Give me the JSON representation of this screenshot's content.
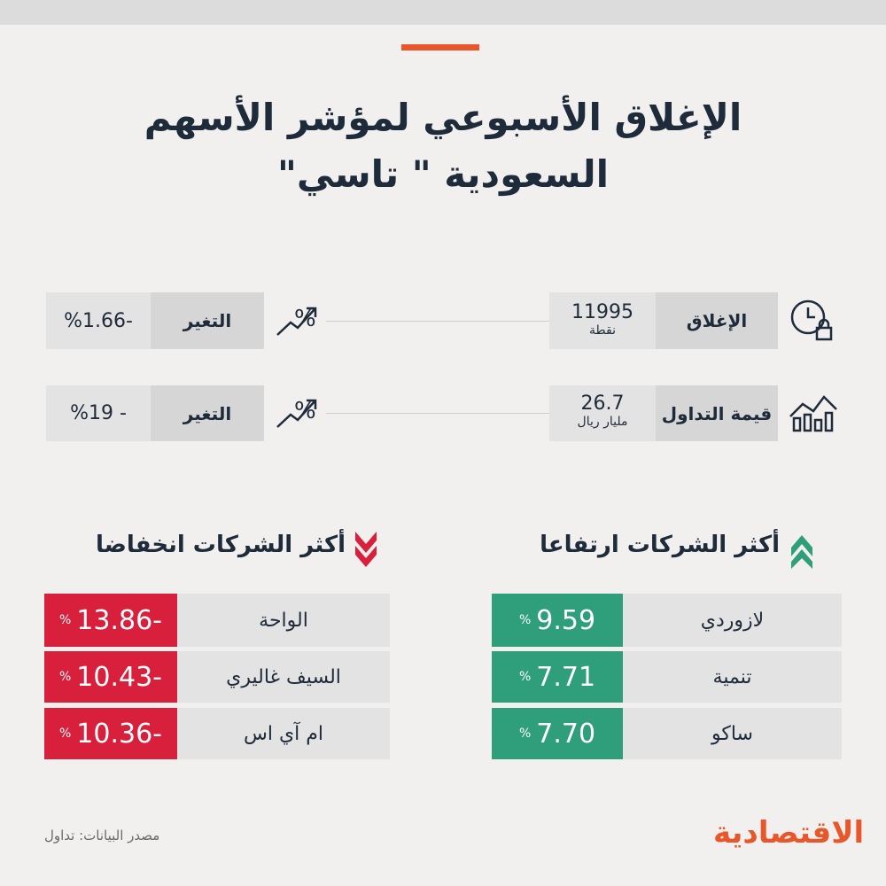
{
  "header": {
    "title_lines": [
      "الإغلاق الأسبوعي لمؤشر الأسهم",
      "السعودية \" تاسي\""
    ]
  },
  "stats": [
    {
      "label": "الإغلاق",
      "value": "11995",
      "unit": "نقطة",
      "change_label": "التغير",
      "change_value": "%1.66-"
    },
    {
      "label": "قيمة التداول",
      "value": "26.7",
      "unit": "مليار ريال",
      "change_label": "التغير",
      "change_value": "%19 -"
    }
  ],
  "gainers": {
    "title": "أكثر الشركات ارتفاعا",
    "rows": [
      {
        "name": "لازوردي",
        "value": "9.59",
        "unit": "%"
      },
      {
        "name": "تنمية",
        "value": "7.71",
        "unit": "%"
      },
      {
        "name": "ساكو",
        "value": "7.70",
        "unit": "%"
      }
    ]
  },
  "losers": {
    "title": "أكثر الشركات انخفاضا",
    "rows": [
      {
        "name": "الواحة",
        "value": "13.86-",
        "unit": "%"
      },
      {
        "name": "السيف غاليري",
        "value": "10.43-",
        "unit": "%"
      },
      {
        "name": "ام آي اس",
        "value": "10.36-",
        "unit": "%"
      }
    ]
  },
  "footer": {
    "source": "مصدر البيانات: تداول",
    "logo": "الاقتصادية"
  }
}
